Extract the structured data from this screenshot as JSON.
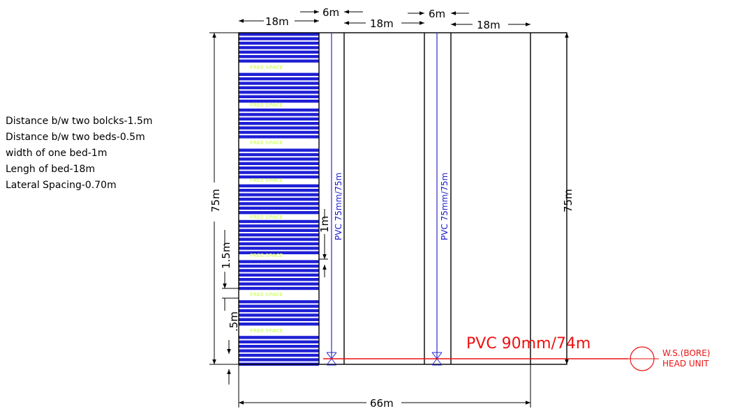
{
  "notes": [
    "Distance b/w two bolcks-1.5m",
    "Distance b/w two beds-0.5m",
    "width of one bed-1m",
    "Lengh of bed-18m",
    "Lateral Spacing-0.70m"
  ],
  "dimensions": {
    "top_block_1": "18m",
    "top_gap_1": "6m",
    "top_block_2": "18m",
    "top_gap_2": "6m",
    "top_block_3": "18m",
    "left_height": "75m",
    "right_height": "75m",
    "bed_width": "1m",
    "block_gap": "1.5m",
    "bed_gap": ".5m",
    "total_width": "66m"
  },
  "free_space_label": "FREE SPACE",
  "submain_labels": [
    "PVC 75mm/75m",
    "PVC 75mm/75m"
  ],
  "main_pipe_label": "PVC 90mm/74m",
  "water_source": {
    "line1": "W.S.(BORE)",
    "line2": "HEAD UNIT"
  },
  "colors": {
    "bed_fill": "#1f1fd6",
    "submain": "#2a2acc",
    "main_pipe": "#ee1111",
    "lines": "#000000"
  }
}
